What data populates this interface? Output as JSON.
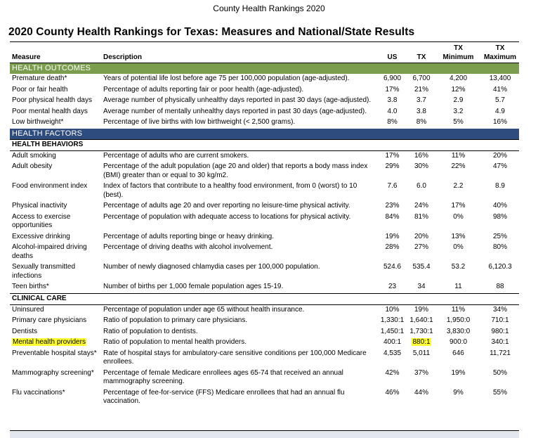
{
  "page": {
    "caption": "County Health Rankings 2020",
    "title": "2020 County Health Rankings for Texas: Measures and National/State Results"
  },
  "table": {
    "headers": {
      "measure": "Measure",
      "description": "Description",
      "us": "US",
      "tx": "TX",
      "tx_min_line1": "TX",
      "tx_min_line2": "Minimum",
      "tx_max_line1": "TX",
      "tx_max_line2": "Maximum"
    },
    "sections": [
      {
        "label": "HEALTH OUTCOMES",
        "style": "green",
        "rows": [
          {
            "measure": "Premature death*",
            "description": "Years of potential life lost before age 75 per 100,000 population (age-adjusted).",
            "us": "6,900",
            "tx": "6,700",
            "min": "4,200",
            "max": "13,400"
          },
          {
            "measure": "Poor or fair health",
            "description": "Percentage of adults reporting fair or poor health (age-adjusted).",
            "us": "17%",
            "tx": "21%",
            "min": "12%",
            "max": "41%"
          },
          {
            "measure": "Poor physical health days",
            "description": "Average number of physically unhealthy days reported in past 30 days (age-adjusted).",
            "us": "3.8",
            "tx": "3.7",
            "min": "2.9",
            "max": "5.7"
          },
          {
            "measure": "Poor mental health days",
            "description": "Average number of mentally unhealthy days reported in past 30 days (age-adjusted).",
            "us": "4.0",
            "tx": "3.8",
            "min": "3.2",
            "max": "4.9"
          },
          {
            "measure": "Low birthweight*",
            "description": "Percentage of live births with low birthweight (< 2,500 grams).",
            "us": "8%",
            "tx": "8%",
            "min": "5%",
            "max": "16%"
          }
        ]
      },
      {
        "label": "HEALTH FACTORS",
        "style": "blue",
        "rows": []
      },
      {
        "label": "HEALTH BEHAVIORS",
        "style": "sub",
        "rows": [
          {
            "measure": "Adult smoking",
            "description": "Percentage of adults who are current smokers.",
            "us": "17%",
            "tx": "16%",
            "min": "11%",
            "max": "20%"
          },
          {
            "measure": "Adult obesity",
            "description": "Percentage of the adult population (age 20 and older) that reports a body mass index (BMI) greater than or equal to 30 kg/m2.",
            "us": "29%",
            "tx": "30%",
            "min": "22%",
            "max": "47%"
          },
          {
            "measure": "Food environment index",
            "description": "Index of factors that contribute to a healthy food environment, from 0 (worst) to 10 (best).",
            "us": "7.6",
            "tx": "6.0",
            "min": "2.2",
            "max": "8.9"
          },
          {
            "measure": "Physical inactivity",
            "description": "Percentage of adults age 20 and over reporting no leisure-time physical activity.",
            "us": "23%",
            "tx": "24%",
            "min": "17%",
            "max": "40%"
          },
          {
            "measure": "Access to exercise opportunities",
            "description": "Percentage of population with adequate access to locations for physical activity.",
            "us": "84%",
            "tx": "81%",
            "min": "0%",
            "max": "98%"
          },
          {
            "measure": "Excessive drinking",
            "description": "Percentage of adults reporting binge or heavy drinking.",
            "us": "19%",
            "tx": "20%",
            "min": "13%",
            "max": "25%"
          },
          {
            "measure": "Alcohol-impaired driving deaths",
            "description": "Percentage of driving deaths with alcohol involvement.",
            "us": "28%",
            "tx": "27%",
            "min": "0%",
            "max": "80%"
          },
          {
            "measure": "Sexually transmitted infections",
            "description": "Number of newly diagnosed chlamydia cases per 100,000 population.",
            "us": "524.6",
            "tx": "535.4",
            "min": "53.2",
            "max": "6,120.3"
          },
          {
            "measure": "Teen births*",
            "description": "Number of births per 1,000 female population ages 15-19.",
            "us": "23",
            "tx": "34",
            "min": "11",
            "max": "88"
          }
        ]
      },
      {
        "label": "CLINICAL CARE",
        "style": "sub",
        "rows": [
          {
            "measure": "Uninsured",
            "description": "Percentage of population under age 65 without health insurance.",
            "us": "10%",
            "tx": "19%",
            "min": "11%",
            "max": "34%"
          },
          {
            "measure": "Primary care physicians",
            "description": "Ratio of population to primary care physicians.",
            "us": "1,330:1",
            "tx": "1,640:1",
            "min": "1,950:0",
            "max": "710:1"
          },
          {
            "measure": "Dentists",
            "description": "Ratio of population to dentists.",
            "us": "1,450:1",
            "tx": "1,730:1",
            "min": "3,830:0",
            "max": "980:1"
          },
          {
            "measure": "Mental health providers",
            "description": "Ratio of population to mental health providers.",
            "us": "400:1",
            "tx": "880:1",
            "min": "900:0",
            "max": "340:1",
            "highlight": true
          },
          {
            "measure": "Preventable hospital stays*",
            "description": "Rate of hospital stays for ambulatory-care sensitive conditions per 100,000 Medicare enrollees.",
            "us": "4,535",
            "tx": "5,011",
            "min": "646",
            "max": "11,721"
          },
          {
            "measure": "Mammography screening*",
            "description": "Percentage of female Medicare enrollees ages 65-74 that received an annual mammography screening.",
            "us": "42%",
            "tx": "37%",
            "min": "19%",
            "max": "50%"
          },
          {
            "measure": "Flu vaccinations*",
            "description": "Percentage of fee-for-service (FFS) Medicare enrollees that had an annual flu vaccination.",
            "us": "46%",
            "tx": "44%",
            "min": "9%",
            "max": "55%"
          }
        ]
      }
    ]
  },
  "colors": {
    "health_outcomes_bar": "#7a9e4e",
    "health_factors_bar": "#2f4c7e",
    "highlight": "#ffff33"
  }
}
